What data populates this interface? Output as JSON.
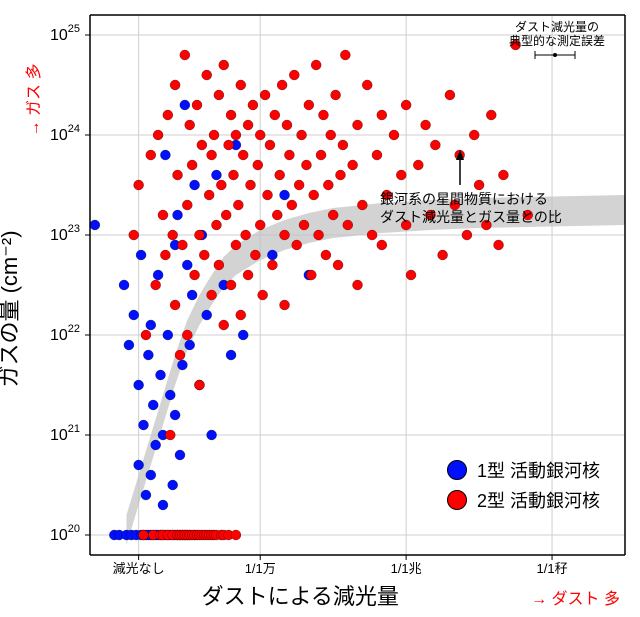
{
  "chart": {
    "type": "scatter",
    "background_color": "#ffffff",
    "grid_color": "#cfcfcf",
    "axis_color": "#000000",
    "tick_labels_x": [
      "減光なし",
      "1/1万",
      "1/1兆",
      "1/1秄"
    ],
    "tick_labels_y": [
      "10^20",
      "10^21",
      "10^22",
      "10^23",
      "10^24",
      "10^25"
    ],
    "x_axis": {
      "min": 0,
      "max": 22,
      "ticks": [
        2,
        7,
        13,
        19
      ]
    },
    "y_axis": {
      "min": 19.8,
      "max": 25.2,
      "log": true
    },
    "series": [
      {
        "name": "type1",
        "label": "1型 活動銀河核",
        "color": "#0010ff",
        "marker_size": 5,
        "points": [
          [
            0.2,
            23.1
          ],
          [
            1.0,
            20.0
          ],
          [
            1.2,
            20.0
          ],
          [
            1.4,
            22.5
          ],
          [
            1.5,
            20.0
          ],
          [
            1.6,
            21.9
          ],
          [
            1.7,
            20.0
          ],
          [
            1.8,
            22.2
          ],
          [
            1.9,
            20.0
          ],
          [
            2.0,
            21.5
          ],
          [
            2.0,
            20.7
          ],
          [
            2.1,
            20.0
          ],
          [
            2.1,
            22.8
          ],
          [
            2.2,
            20.0
          ],
          [
            2.2,
            21.1
          ],
          [
            2.3,
            20.0
          ],
          [
            2.3,
            20.4
          ],
          [
            2.4,
            20.0
          ],
          [
            2.4,
            21.8
          ],
          [
            2.5,
            20.0
          ],
          [
            2.5,
            22.1
          ],
          [
            2.5,
            20.6
          ],
          [
            2.6,
            20.0
          ],
          [
            2.6,
            21.3
          ],
          [
            2.7,
            20.0
          ],
          [
            2.7,
            20.9
          ],
          [
            2.8,
            20.0
          ],
          [
            2.8,
            22.6
          ],
          [
            2.9,
            20.0
          ],
          [
            2.9,
            21.6
          ],
          [
            3.0,
            20.0
          ],
          [
            3.0,
            20.3
          ],
          [
            3.0,
            21.0
          ],
          [
            3.1,
            20.0
          ],
          [
            3.1,
            23.8
          ],
          [
            3.2,
            20.0
          ],
          [
            3.2,
            22.0
          ],
          [
            3.3,
            20.0
          ],
          [
            3.3,
            21.4
          ],
          [
            3.4,
            20.0
          ],
          [
            3.4,
            20.5
          ],
          [
            3.5,
            20.0
          ],
          [
            3.5,
            22.9
          ],
          [
            3.5,
            21.2
          ],
          [
            3.6,
            20.0
          ],
          [
            3.6,
            23.2
          ],
          [
            3.7,
            20.0
          ],
          [
            3.7,
            20.8
          ],
          [
            3.8,
            20.0
          ],
          [
            3.8,
            21.7
          ],
          [
            3.9,
            20.0
          ],
          [
            3.9,
            24.3
          ],
          [
            4.0,
            20.0
          ],
          [
            4.0,
            22.7
          ],
          [
            4.1,
            20.0
          ],
          [
            4.1,
            21.9
          ],
          [
            4.2,
            22.4
          ],
          [
            4.3,
            20.0
          ],
          [
            4.3,
            23.5
          ],
          [
            4.5,
            21.5
          ],
          [
            4.6,
            23.0
          ],
          [
            4.8,
            22.2
          ],
          [
            5.0,
            21.0
          ],
          [
            5.2,
            23.6
          ],
          [
            5.5,
            22.5
          ],
          [
            5.8,
            21.8
          ],
          [
            6.0,
            23.9
          ],
          [
            6.3,
            22.0
          ],
          [
            7.5,
            22.8
          ],
          [
            8.0,
            23.4
          ],
          [
            9.0,
            22.6
          ]
        ]
      },
      {
        "name": "type2",
        "label": "2型 活動銀河核",
        "color": "#ff0000",
        "marker_size": 5,
        "points": [
          [
            1.8,
            23.0
          ],
          [
            2.0,
            23.5
          ],
          [
            2.2,
            20.0
          ],
          [
            2.3,
            22.0
          ],
          [
            2.5,
            23.8
          ],
          [
            2.6,
            20.0
          ],
          [
            2.7,
            22.5
          ],
          [
            2.8,
            24.0
          ],
          [
            2.9,
            20.0
          ],
          [
            3.0,
            23.2
          ],
          [
            3.0,
            20.0
          ],
          [
            3.1,
            22.8
          ],
          [
            3.2,
            24.2
          ],
          [
            3.2,
            20.0
          ],
          [
            3.3,
            21.0
          ],
          [
            3.4,
            23.0
          ],
          [
            3.4,
            20.0
          ],
          [
            3.5,
            22.3
          ],
          [
            3.5,
            24.5
          ],
          [
            3.6,
            20.0
          ],
          [
            3.6,
            23.6
          ],
          [
            3.7,
            20.0
          ],
          [
            3.7,
            21.8
          ],
          [
            3.8,
            22.9
          ],
          [
            3.8,
            20.0
          ],
          [
            3.9,
            24.8
          ],
          [
            3.9,
            20.0
          ],
          [
            4.0,
            23.3
          ],
          [
            4.0,
            20.0
          ],
          [
            4.0,
            22.0
          ],
          [
            4.1,
            24.1
          ],
          [
            4.1,
            20.0
          ],
          [
            4.2,
            23.7
          ],
          [
            4.2,
            20.0
          ],
          [
            4.3,
            22.6
          ],
          [
            4.3,
            20.0
          ],
          [
            4.4,
            24.3
          ],
          [
            4.4,
            20.0
          ],
          [
            4.5,
            23.0
          ],
          [
            4.5,
            21.5
          ],
          [
            4.5,
            20.0
          ],
          [
            4.6,
            23.9
          ],
          [
            4.6,
            20.0
          ],
          [
            4.7,
            22.8
          ],
          [
            4.7,
            20.0
          ],
          [
            4.8,
            24.6
          ],
          [
            4.8,
            20.0
          ],
          [
            4.9,
            23.4
          ],
          [
            4.9,
            20.0
          ],
          [
            5.0,
            22.4
          ],
          [
            5.0,
            20.0
          ],
          [
            5.0,
            23.8
          ],
          [
            5.1,
            24.0
          ],
          [
            5.1,
            20.0
          ],
          [
            5.2,
            23.1
          ],
          [
            5.2,
            20.0
          ],
          [
            5.3,
            22.7
          ],
          [
            5.3,
            24.4
          ],
          [
            5.4,
            23.5
          ],
          [
            5.4,
            20.0
          ],
          [
            5.5,
            22.1
          ],
          [
            5.5,
            24.7
          ],
          [
            5.5,
            20.0
          ],
          [
            5.6,
            23.2
          ],
          [
            5.7,
            23.9
          ],
          [
            5.7,
            20.0
          ],
          [
            5.8,
            22.5
          ],
          [
            5.8,
            24.2
          ],
          [
            5.9,
            23.6
          ],
          [
            6.0,
            22.9
          ],
          [
            6.0,
            24.0
          ],
          [
            6.0,
            20.0
          ],
          [
            6.1,
            23.3
          ],
          [
            6.2,
            24.5
          ],
          [
            6.2,
            22.2
          ],
          [
            6.3,
            23.8
          ],
          [
            6.4,
            23.0
          ],
          [
            6.5,
            24.1
          ],
          [
            6.5,
            22.6
          ],
          [
            6.6,
            23.5
          ],
          [
            6.7,
            24.3
          ],
          [
            6.8,
            22.8
          ],
          [
            6.9,
            23.7
          ],
          [
            7.0,
            24.0
          ],
          [
            7.0,
            23.1
          ],
          [
            7.1,
            22.4
          ],
          [
            7.2,
            24.4
          ],
          [
            7.3,
            23.4
          ],
          [
            7.4,
            23.9
          ],
          [
            7.5,
            22.7
          ],
          [
            7.6,
            24.2
          ],
          [
            7.7,
            23.2
          ],
          [
            7.8,
            23.6
          ],
          [
            7.9,
            24.5
          ],
          [
            8.0,
            23.0
          ],
          [
            8.0,
            22.3
          ],
          [
            8.1,
            24.1
          ],
          [
            8.2,
            23.8
          ],
          [
            8.3,
            23.3
          ],
          [
            8.4,
            24.6
          ],
          [
            8.5,
            22.9
          ],
          [
            8.6,
            23.5
          ],
          [
            8.7,
            24.0
          ],
          [
            8.8,
            23.1
          ],
          [
            8.9,
            23.7
          ],
          [
            9.0,
            24.3
          ],
          [
            9.1,
            22.6
          ],
          [
            9.2,
            23.4
          ],
          [
            9.3,
            24.7
          ],
          [
            9.4,
            23.0
          ],
          [
            9.5,
            23.8
          ],
          [
            9.6,
            24.2
          ],
          [
            9.7,
            22.8
          ],
          [
            9.8,
            23.5
          ],
          [
            9.9,
            24.0
          ],
          [
            10.0,
            23.2
          ],
          [
            10.1,
            24.4
          ],
          [
            10.2,
            22.7
          ],
          [
            10.3,
            23.6
          ],
          [
            10.4,
            23.9
          ],
          [
            10.5,
            24.8
          ],
          [
            10.6,
            23.1
          ],
          [
            10.8,
            23.7
          ],
          [
            11.0,
            24.1
          ],
          [
            11.0,
            22.5
          ],
          [
            11.2,
            23.3
          ],
          [
            11.4,
            24.5
          ],
          [
            11.6,
            23.0
          ],
          [
            11.8,
            23.8
          ],
          [
            12.0,
            24.2
          ],
          [
            12.0,
            22.9
          ],
          [
            12.2,
            23.4
          ],
          [
            12.5,
            24.0
          ],
          [
            12.8,
            23.6
          ],
          [
            13.0,
            23.1
          ],
          [
            13.0,
            24.3
          ],
          [
            13.2,
            22.6
          ],
          [
            13.5,
            23.7
          ],
          [
            13.8,
            24.1
          ],
          [
            14.0,
            23.2
          ],
          [
            14.2,
            23.9
          ],
          [
            14.5,
            22.8
          ],
          [
            14.8,
            24.4
          ],
          [
            15.0,
            23.3
          ],
          [
            15.2,
            23.8
          ],
          [
            15.5,
            23.0
          ],
          [
            15.8,
            24.0
          ],
          [
            16.0,
            23.5
          ],
          [
            16.3,
            23.1
          ],
          [
            16.5,
            24.2
          ],
          [
            16.8,
            22.9
          ],
          [
            17.0,
            23.6
          ],
          [
            17.5,
            24.9
          ],
          [
            18.0,
            23.2
          ]
        ]
      }
    ],
    "curve": {
      "color": "#c0c0c0",
      "upper": [
        [
          1.5,
          20.2
        ],
        [
          2.0,
          20.6
        ],
        [
          2.5,
          21.0
        ],
        [
          3.0,
          21.4
        ],
        [
          3.5,
          21.8
        ],
        [
          4.0,
          22.15
        ],
        [
          4.5,
          22.4
        ],
        [
          5.0,
          22.6
        ],
        [
          5.5,
          22.78
        ],
        [
          6.0,
          22.9
        ],
        [
          7.0,
          23.05
        ],
        [
          8.0,
          23.15
        ],
        [
          9.0,
          23.22
        ],
        [
          10.0,
          23.27
        ],
        [
          12.0,
          23.32
        ],
        [
          14.0,
          23.35
        ],
        [
          16.0,
          23.37
        ],
        [
          18.0,
          23.38
        ],
        [
          20.0,
          23.39
        ],
        [
          22.0,
          23.4
        ]
      ],
      "lower": [
        [
          1.5,
          19.9
        ],
        [
          2.0,
          20.3
        ],
        [
          2.5,
          20.7
        ],
        [
          3.0,
          21.1
        ],
        [
          3.5,
          21.5
        ],
        [
          4.0,
          21.85
        ],
        [
          4.5,
          22.1
        ],
        [
          5.0,
          22.3
        ],
        [
          5.5,
          22.48
        ],
        [
          6.0,
          22.6
        ],
        [
          7.0,
          22.75
        ],
        [
          8.0,
          22.85
        ],
        [
          9.0,
          22.92
        ],
        [
          10.0,
          22.97
        ],
        [
          12.0,
          23.02
        ],
        [
          14.0,
          23.05
        ],
        [
          16.0,
          23.07
        ],
        [
          18.0,
          23.08
        ],
        [
          20.0,
          23.09
        ],
        [
          22.0,
          23.1
        ]
      ]
    },
    "annotation": {
      "line1": "銀河系の星間物質における",
      "line2": "ダスト減光量とガス量との比"
    },
    "error_label": {
      "line1": "ダスト減光量の",
      "line2": "典型的な測定誤差"
    },
    "axis_labels": {
      "y": "ガスの量 (cm⁻²)",
      "y_hint": "→ ガス 多",
      "x": "ダストによる減光量",
      "x_hint": "→ ダスト 多"
    },
    "legend": {
      "items": [
        {
          "color": "#0010ff",
          "label": "1型 活動銀河核"
        },
        {
          "color": "#ff0000",
          "label": "2型 活動銀河核"
        }
      ]
    }
  }
}
